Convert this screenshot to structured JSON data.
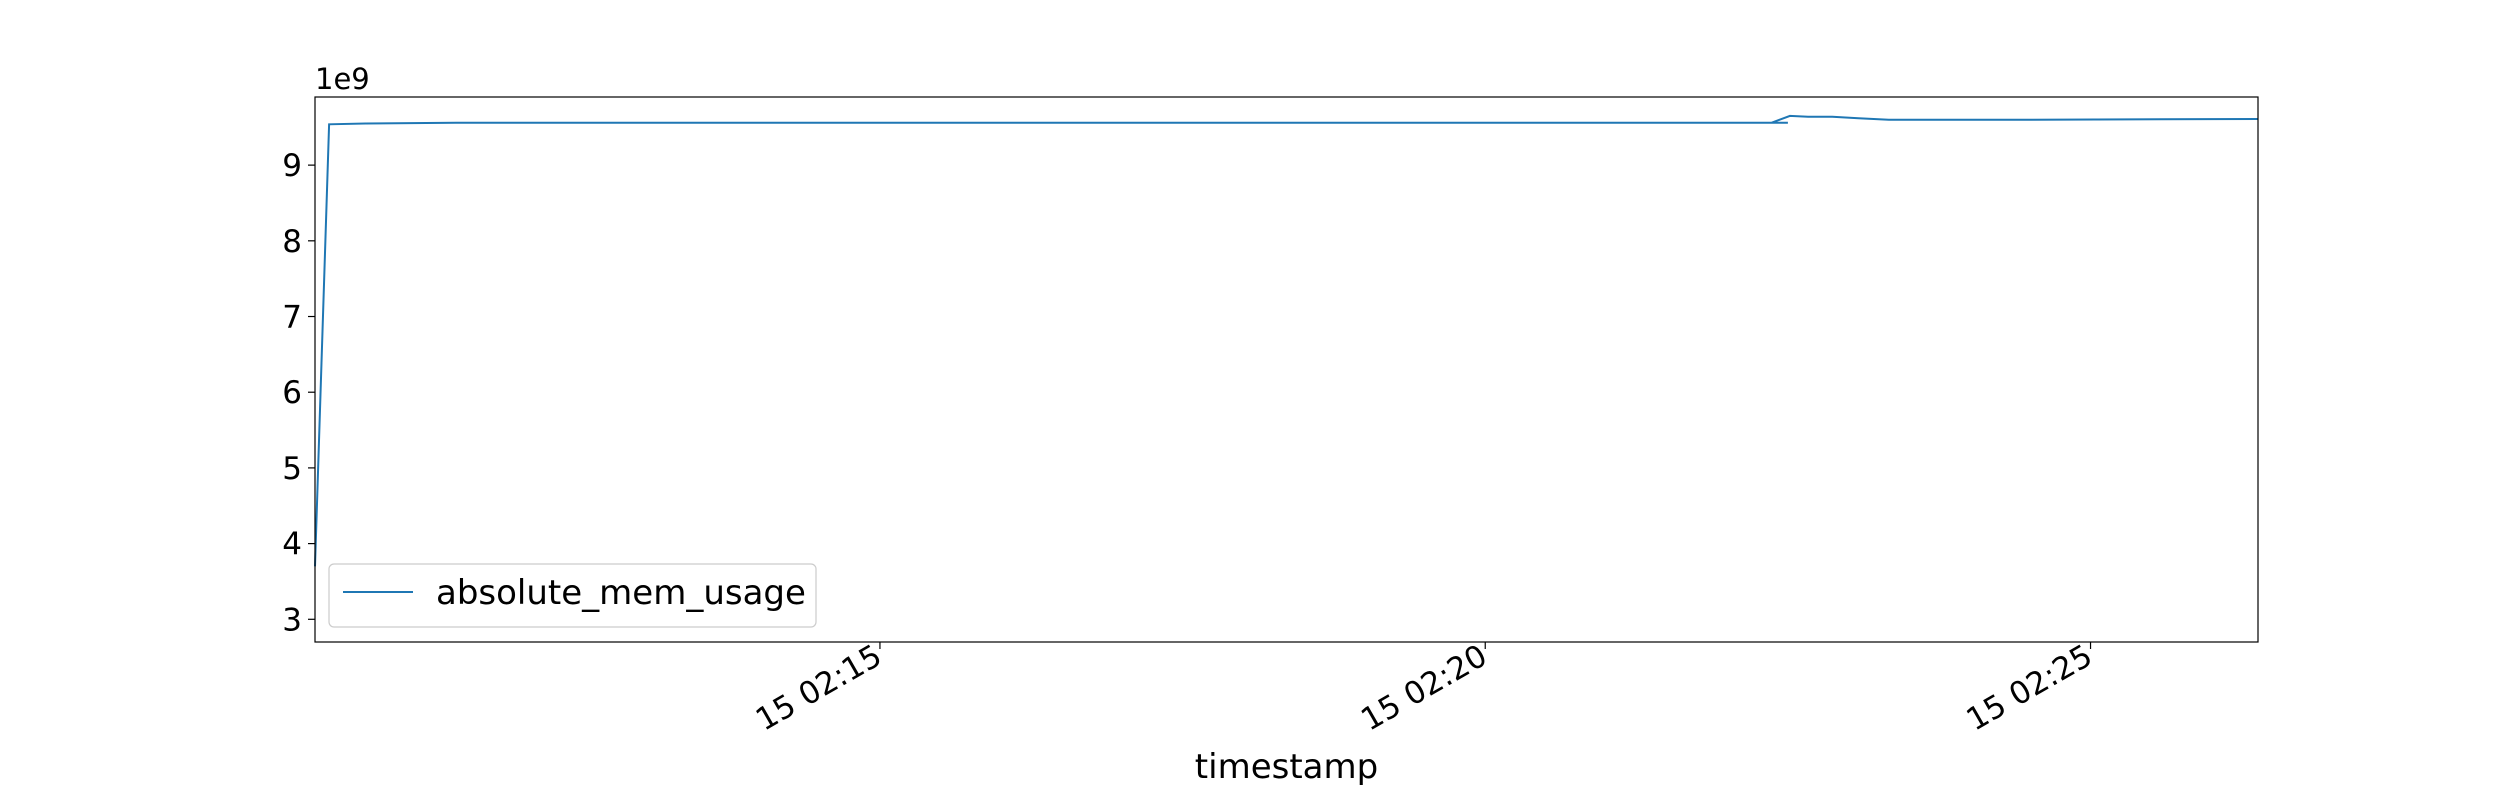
{
  "chart_data": {
    "type": "line",
    "title": "",
    "xlabel": "timestamp",
    "ylabel": "",
    "y_offset_label": "1e9",
    "x_range": [
      "15 02:10:20",
      "15 02:26:23"
    ],
    "ylim": [
      2.7,
      9.9
    ],
    "y_ticks": [
      3,
      4,
      5,
      6,
      7,
      8,
      9
    ],
    "x_ticks": [
      {
        "time": "15 02:15:00",
        "label": "15 02:15"
      },
      {
        "time": "15 02:20:00",
        "label": "15 02:20"
      },
      {
        "time": "15 02:25:00",
        "label": "15 02:25"
      }
    ],
    "grid": false,
    "legend_position": "lower-left",
    "series": [
      {
        "name": "absolute_mem_usage",
        "color": "#1f77b4",
        "x": [
          "15 02:10:20",
          "15 02:10:27",
          "15 02:10:45",
          "15 02:11:30",
          "15 02:13:00",
          "15 02:16:00",
          "15 02:20:00",
          "15 02:22:30",
          "15 02:22:22",
          "15 02:22:31",
          "15 02:22:40",
          "15 02:22:52",
          "15 02:23:05",
          "15 02:23:20",
          "15 02:24:30",
          "15 02:26:23"
        ],
        "y": [
          3.7,
          9.54,
          9.55,
          9.56,
          9.56,
          9.56,
          9.56,
          9.56,
          9.56,
          9.65,
          9.64,
          9.64,
          9.62,
          9.6,
          9.6,
          9.61
        ]
      }
    ]
  }
}
